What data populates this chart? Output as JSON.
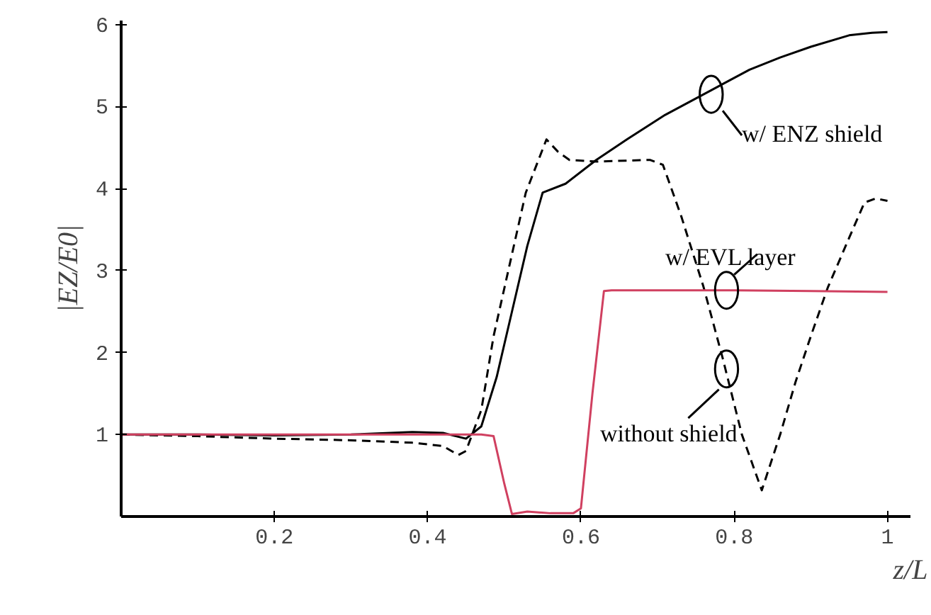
{
  "chart_data": {
    "type": "line",
    "xlabel": "z/L",
    "ylabel": "|EZ/E0|",
    "xlim": [
      0,
      1.03
    ],
    "ylim": [
      0,
      6.05
    ],
    "xticks": [
      {
        "value": 0.2,
        "label": "0.2"
      },
      {
        "value": 0.4,
        "label": "0.4"
      },
      {
        "value": 0.6,
        "label": "0.6"
      },
      {
        "value": 0.8,
        "label": "0.8"
      },
      {
        "value": 1,
        "label": "1"
      }
    ],
    "yticks": [
      1,
      2,
      3,
      4,
      5,
      6
    ],
    "grid": false,
    "marker": "none",
    "series": [
      {
        "name": "w/ ENZ shield",
        "color": "#000000",
        "line_style": "solid",
        "x": [
          0,
          0.1,
          0.2,
          0.3,
          0.38,
          0.42,
          0.45,
          0.47,
          0.49,
          0.51,
          0.53,
          0.55,
          0.58,
          0.62,
          0.66,
          0.71,
          0.77,
          0.82,
          0.86,
          0.9,
          0.95,
          0.98,
          1
        ],
        "values": [
          1.0,
          1.0,
          0.99,
          1.0,
          1.03,
          1.02,
          0.95,
          1.1,
          1.7,
          2.5,
          3.3,
          3.95,
          4.06,
          4.35,
          4.6,
          4.9,
          5.2,
          5.45,
          5.6,
          5.73,
          5.87,
          5.9,
          5.91
        ]
      },
      {
        "name": "without shield",
        "color": "#000000",
        "line_style": "dashed",
        "x": [
          0,
          0.1,
          0.2,
          0.3,
          0.38,
          0.42,
          0.44,
          0.45,
          0.47,
          0.486,
          0.51,
          0.528,
          0.555,
          0.57,
          0.585,
          0.62,
          0.69,
          0.707,
          0.731,
          0.76,
          0.785,
          0.81,
          0.836,
          0.86,
          0.88,
          0.9,
          0.922,
          0.95,
          0.97,
          0.985,
          1
        ],
        "values": [
          1.0,
          0.98,
          0.95,
          0.93,
          0.9,
          0.86,
          0.75,
          0.8,
          1.3,
          2.2,
          3.2,
          3.95,
          4.6,
          4.45,
          4.35,
          4.33,
          4.35,
          4.29,
          3.66,
          2.8,
          1.93,
          1.0,
          0.32,
          1.0,
          1.64,
          2.2,
          2.79,
          3.4,
          3.83,
          3.88,
          3.85
        ]
      },
      {
        "name": "w/ EVL layer",
        "color": "#d04060",
        "line_style": "solid",
        "x": [
          0,
          0.2,
          0.4,
          0.47,
          0.486,
          0.5,
          0.51,
          0.53,
          0.56,
          0.59,
          0.6,
          0.615,
          0.63,
          0.64,
          0.7,
          0.8,
          0.9,
          1
        ],
        "values": [
          1.0,
          1.0,
          1.0,
          1.0,
          0.98,
          0.4,
          0.03,
          0.06,
          0.04,
          0.04,
          0.1,
          1.5,
          2.75,
          2.76,
          2.76,
          2.76,
          2.75,
          2.74
        ]
      }
    ]
  }
}
